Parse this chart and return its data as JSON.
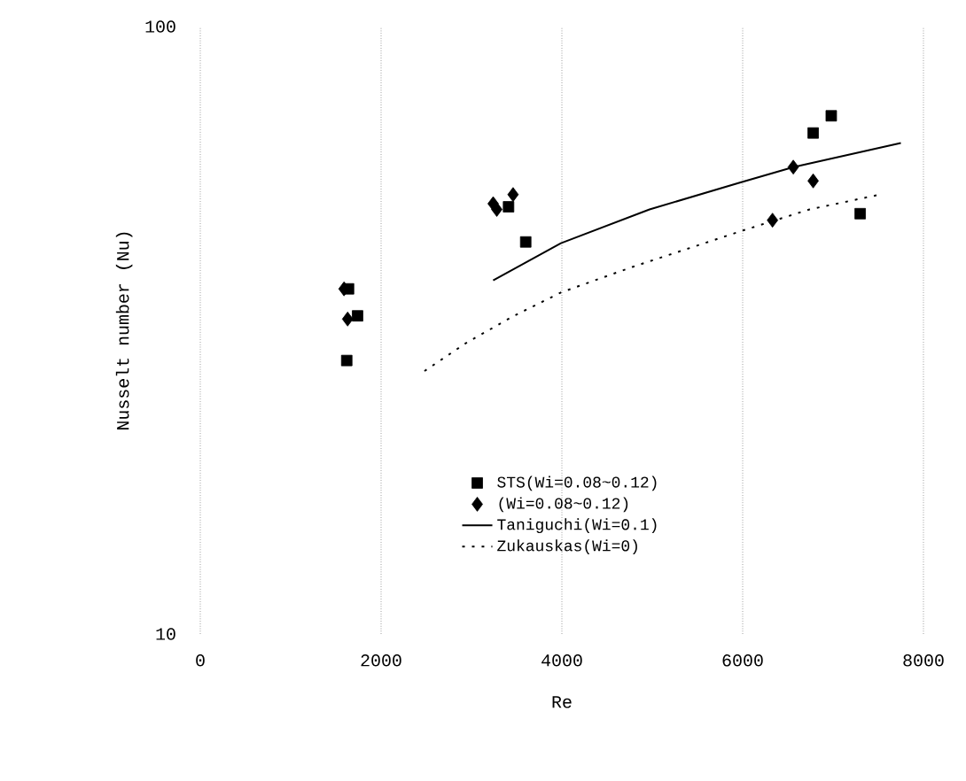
{
  "chart_data": {
    "type": "scatter",
    "xlabel": "Re",
    "ylabel": "Nusselt number (Nu)",
    "xlim": [
      0,
      8000
    ],
    "xticks": [
      0,
      2000,
      4000,
      6000,
      8000
    ],
    "ylim": [
      10,
      100
    ],
    "yticks": [
      10,
      100
    ],
    "log": "y",
    "grid": "x",
    "legend": "bottom",
    "series": [
      {
        "name": "STS(Wi=0.08~0.12)",
        "marker": "square",
        "color": "#000000",
        "x": [
          1620,
          1740,
          1640,
          3600,
          3410,
          6780,
          6980,
          7300
        ],
        "values": [
          28.2,
          33.4,
          37.0,
          44.2,
          50.5,
          66.8,
          71.3,
          49.2
        ]
      },
      {
        "name": "(Wi=0.08~0.12)",
        "marker": "diamond",
        "color": "#000000",
        "x": [
          1590,
          1630,
          3240,
          3280,
          3460,
          6330,
          6560,
          6780
        ],
        "values": [
          37.0,
          33.0,
          51.1,
          50.0,
          52.9,
          48.0,
          58.7,
          55.7
        ]
      },
      {
        "name": "Taniguchi(Wi=0.1)",
        "type": "line",
        "marker": "none",
        "line_style": "solid",
        "color": "#000000",
        "x": [
          3240,
          3990,
          4970,
          5960,
          6560,
          7750
        ],
        "values": [
          38.2,
          44.0,
          50.0,
          55.3,
          58.7,
          64.3
        ]
      },
      {
        "name": "Zukauskas(Wi=0)",
        "type": "line",
        "marker": "none",
        "line_style": "dotted",
        "color": "#000000",
        "x": [
          2480,
          2950,
          3470,
          3990,
          4780,
          6010,
          6740,
          7520
        ],
        "values": [
          27.1,
          30.2,
          33.4,
          36.5,
          40.2,
          46.2,
          50.0,
          52.9
        ]
      }
    ]
  }
}
